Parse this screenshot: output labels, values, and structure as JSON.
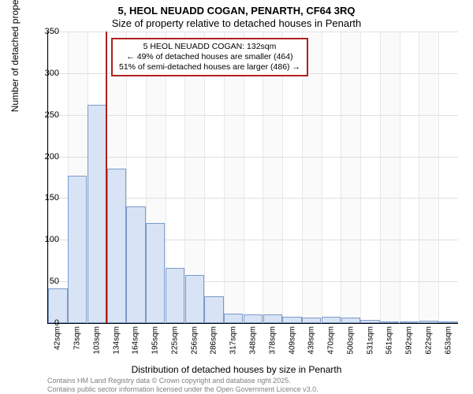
{
  "title_main": "5, HEOL NEUADD COGAN, PENARTH, CF64 3RQ",
  "title_sub": "Size of property relative to detached houses in Penarth",
  "y_axis": {
    "label": "Number of detached properties",
    "min": 0,
    "max": 350,
    "ticks": [
      0,
      50,
      100,
      150,
      200,
      250,
      300,
      350
    ]
  },
  "x_axis": {
    "label": "Distribution of detached houses by size in Penarth",
    "tick_labels": [
      "42sqm",
      "73sqm",
      "103sqm",
      "134sqm",
      "164sqm",
      "195sqm",
      "225sqm",
      "256sqm",
      "286sqm",
      "317sqm",
      "348sqm",
      "378sqm",
      "409sqm",
      "439sqm",
      "470sqm",
      "500sqm",
      "531sqm",
      "561sqm",
      "592sqm",
      "622sqm",
      "653sqm"
    ]
  },
  "bars": [
    42,
    177,
    262,
    185,
    140,
    120,
    66,
    58,
    32,
    11,
    10,
    10,
    8,
    7,
    8,
    7,
    4,
    2,
    2,
    3,
    1
  ],
  "marker": {
    "index_position": 2.93,
    "annotation_lines": [
      "5 HEOL NEUADD COGAN: 132sqm",
      "← 49% of detached houses are smaller (464)",
      "51% of semi-detached houses are larger (486) →"
    ]
  },
  "styling": {
    "bar_fill": "#d8e4f5",
    "bar_border": "#7a9ac9",
    "marker_color": "#b02020",
    "annotation_border": "#b02020",
    "annotation_bg": "#ffffff",
    "grid_color": "#e0e0e0",
    "vgrid_color": "#e8e8e8",
    "band_colors": [
      "#ffffff",
      "#fafafb"
    ],
    "background": "#ffffff",
    "text_color": "#000000",
    "footnote_color": "#808080",
    "font_family": "Arial, sans-serif",
    "title_fontsize": 13,
    "axis_label_fontsize": 12,
    "tick_fontsize": 11,
    "xtick_fontsize": 10,
    "annotation_fontsize": 10.5,
    "footnote_fontsize": 9
  },
  "footnote_lines": [
    "Contains HM Land Registry data © Crown copyright and database right 2025.",
    "Contains public sector information licensed under the Open Government Licence v3.0."
  ]
}
